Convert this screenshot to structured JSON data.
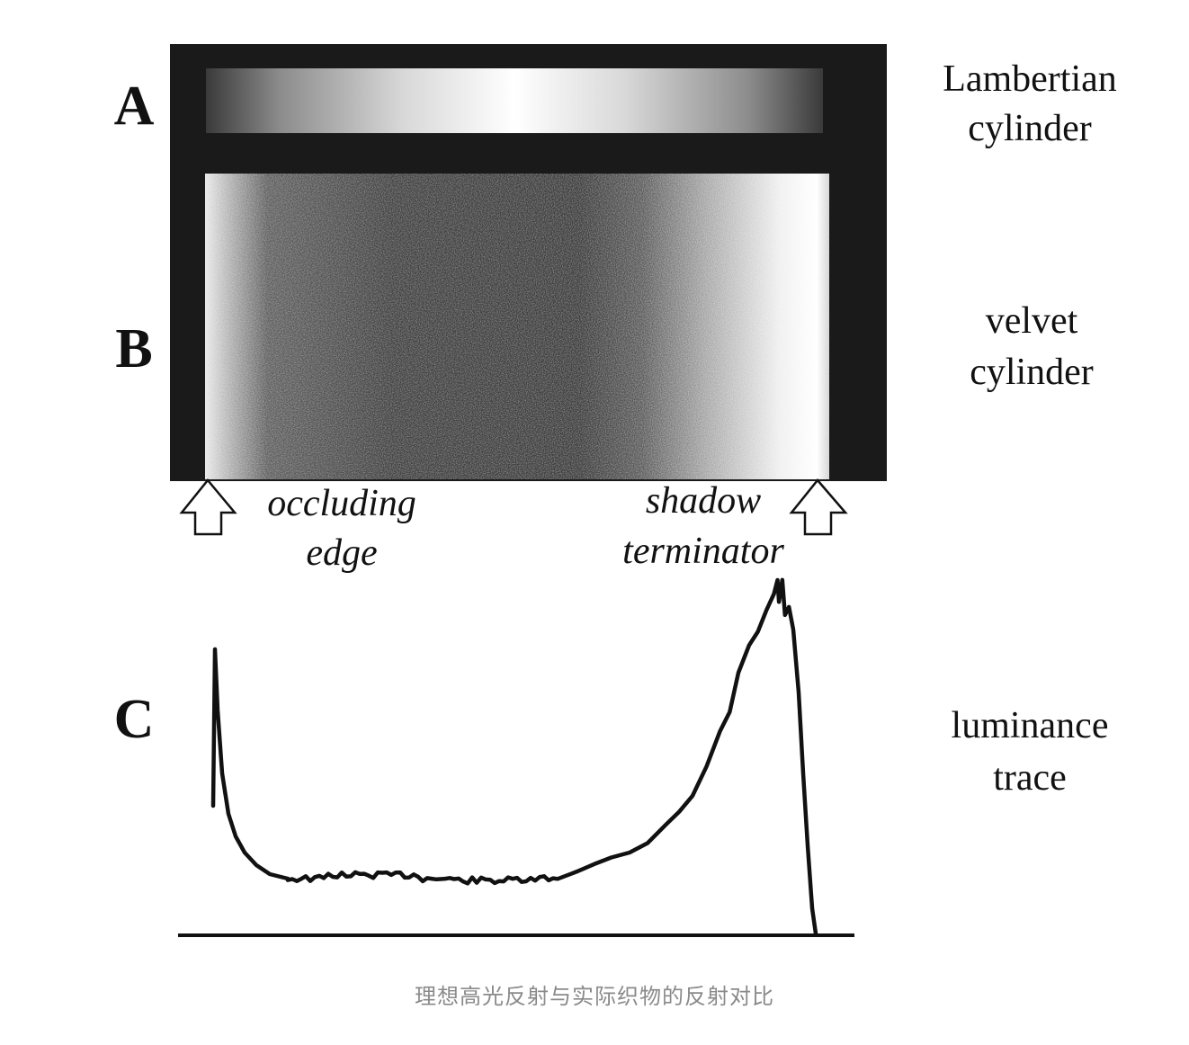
{
  "figure": {
    "panels": [
      {
        "letter": "A",
        "label_lines": [
          "Lambertian",
          "cylinder"
        ]
      },
      {
        "letter": "B",
        "label_lines": [
          "velvet",
          "cylinder"
        ]
      },
      {
        "letter": "C",
        "label_lines": [
          "luminance",
          "trace"
        ]
      }
    ],
    "annotations": {
      "left": [
        "occluding",
        "edge"
      ],
      "right": [
        "shadow",
        "terminator"
      ]
    },
    "caption": "理想高光反射与实际织物的反射对比"
  },
  "colors": {
    "background": "#ffffff",
    "frame": "#1a1a1a",
    "ink": "#111111",
    "caption": "#8a8a8a"
  }
}
